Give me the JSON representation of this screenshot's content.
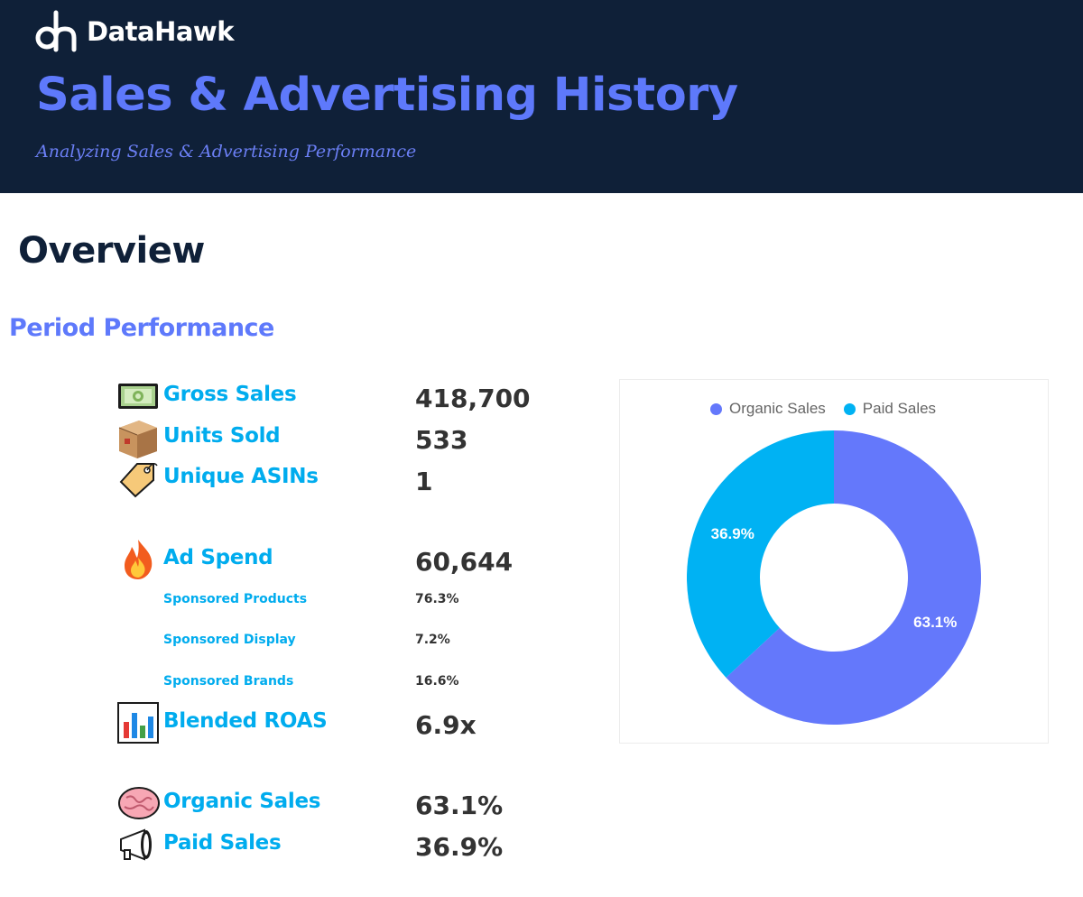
{
  "header": {
    "brand": "DataHawk",
    "title": "Sales & Advertising History",
    "subtitle": "Analyzing Sales & Advertising Performance"
  },
  "overview_heading": "Overview",
  "period_heading": "Period Performance",
  "metrics": {
    "gross_sales": {
      "label": "Gross Sales",
      "value": "418,700",
      "icon": "cash-icon"
    },
    "units_sold": {
      "label": "Units Sold",
      "value": "533",
      "icon": "package-icon"
    },
    "unique_asins": {
      "label": "Unique ASINs",
      "value": "1",
      "icon": "tag-icon"
    },
    "ad_spend": {
      "label": "Ad Spend",
      "value": "60,644",
      "icon": "fire-icon"
    },
    "sponsored_products": {
      "label": "Sponsored Products",
      "value": "76.3%"
    },
    "sponsored_display": {
      "label": "Sponsored Display",
      "value": "7.2%"
    },
    "sponsored_brands": {
      "label": "Sponsored Brands",
      "value": "16.6%"
    },
    "blended_roas": {
      "label": "Blended ROAS",
      "value": "6.9x",
      "icon": "bar-chart-icon"
    },
    "organic_sales": {
      "label": "Organic Sales",
      "value": "63.1%",
      "icon": "brain-icon"
    },
    "paid_sales": {
      "label": "Paid Sales",
      "value": "36.9%",
      "icon": "megaphone-icon"
    }
  },
  "colors": {
    "header_bg": "#0f2038",
    "accent_purple": "#5e79fb",
    "accent_blue": "#00acee",
    "organic": "#6478fb",
    "paid": "#00b2f3"
  },
  "chart_data": {
    "type": "pie",
    "donut": true,
    "legend_position": "top",
    "series": [
      {
        "name": "Organic Sales",
        "value": 63.1,
        "label": "63.1%",
        "color": "#6478fb"
      },
      {
        "name": "Paid Sales",
        "value": 36.9,
        "label": "36.9%",
        "color": "#00b2f3"
      }
    ]
  }
}
